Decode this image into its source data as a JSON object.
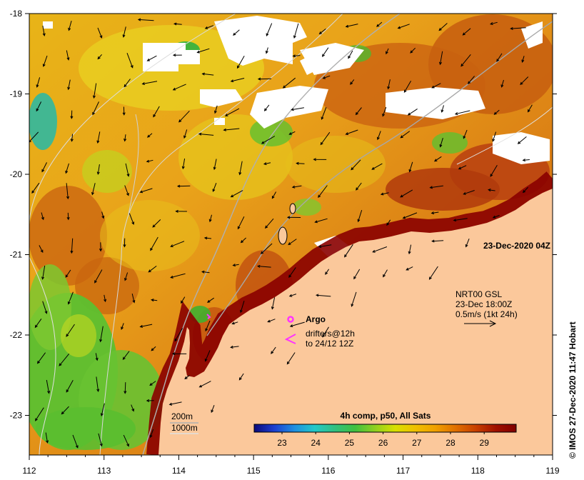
{
  "map": {
    "x_ticks": [
      "112",
      "113",
      "114",
      "115",
      "116",
      "117",
      "118",
      "119"
    ],
    "y_ticks": [
      "-18",
      "-19",
      "-20",
      "-21",
      "-22",
      "-23"
    ],
    "timestamp": "23-Dec-2020 04Z",
    "credit": "© IMOS 27-Dec-2020 11:47 Hobart",
    "legend": {
      "argo_label": "Argo",
      "drifter_line1": "drifters@12h",
      "drifter_line2": "to 24/12 12Z",
      "argo_color": "#ff33ff",
      "drifter_color": "#ff33ff"
    },
    "current_info": {
      "line1": "NRT00 GSL",
      "line2": "23-Dec 18:00Z",
      "line3": "0.5m/s (1kt 24h)"
    },
    "depth_labels": {
      "shallow": "200m",
      "deep": "1000m"
    },
    "colorbar": {
      "title": "4h comp, p50, All Sats",
      "ticks": [
        "23",
        "24",
        "25",
        "26",
        "27",
        "28",
        "29"
      ],
      "colors": [
        "#0a0a7a",
        "#1c3fd0",
        "#1f8fe0",
        "#22c8c8",
        "#30c080",
        "#40c040",
        "#90d020",
        "#d8e000",
        "#f0c000",
        "#f0a000",
        "#e07000",
        "#c84000",
        "#a01000",
        "#800000"
      ]
    },
    "land_color": "#fbc89b"
  }
}
